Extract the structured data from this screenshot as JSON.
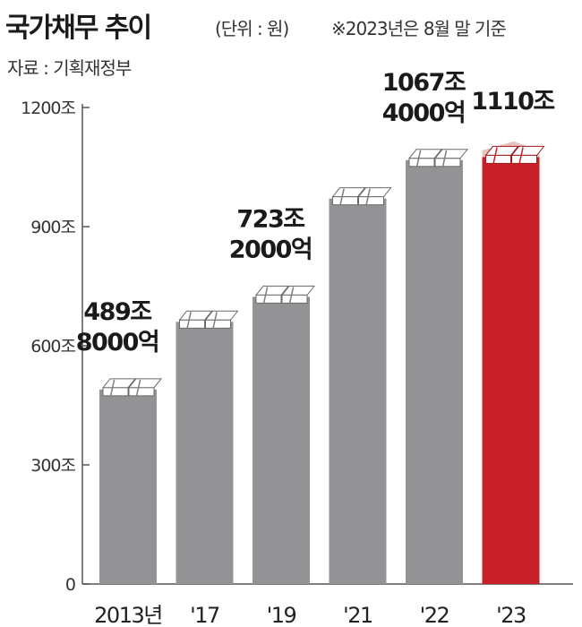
{
  "header": {
    "title": "국가채무 추이",
    "unit": "(단위 : 원)",
    "note": "※2023년은 8월 말 기준",
    "source": "자료 : 기획재정부"
  },
  "chart_data": {
    "type": "bar",
    "title": "국가채무 추이",
    "ylim": [
      0,
      1200
    ],
    "yticks": [
      0,
      300,
      600,
      900,
      1200
    ],
    "ytick_labels": [
      "0",
      "300조",
      "600조",
      "900조",
      "1200조"
    ],
    "categories": [
      "2013년",
      "'17",
      "'19",
      "'21",
      "'22",
      "'23"
    ],
    "values": [
      489.8,
      660.2,
      723.2,
      970.7,
      1067.4,
      1110
    ],
    "data_labels": [
      [
        "489조",
        "8000억"
      ],
      [],
      [
        "723조",
        "2000억"
      ],
      [],
      [
        "1067조",
        "4000억"
      ],
      [
        "1110조"
      ]
    ],
    "highlight_index": 5,
    "colors": {
      "bar": "#939396",
      "bar_dark": "#6e6e71",
      "highlight": "#c8202a",
      "highlight_projection": "#e7c3bb",
      "axis": "#555555"
    },
    "grid": false,
    "legend": "none"
  }
}
